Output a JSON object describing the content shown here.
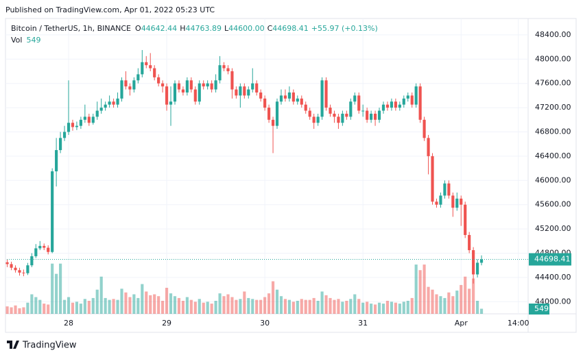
{
  "published": "Published on TradingView.com, Apr 01, 2022 05:23 UTC",
  "legend": {
    "symbol": "Bitcoin / TetherUS, 1h, BINANCE",
    "fields": [
      {
        "label": "O",
        "value": "44642.44"
      },
      {
        "label": "H",
        "value": "44763.89"
      },
      {
        "label": "L",
        "value": "44600.00"
      },
      {
        "label": "C",
        "value": "44698.41"
      }
    ],
    "change": "+55.97 (+0.13%)",
    "volume_label": "Vol"
  },
  "footer": "TradingView",
  "chart_data": {
    "type": "candlestick",
    "up_color": "#26a69a",
    "down_color": "#ef5350",
    "grid": true,
    "last_price": 44698.41,
    "ylim": [
      43800,
      48670
    ],
    "yticks": [
      {
        "value": 44000,
        "label": "44000.00"
      },
      {
        "value": 44400,
        "label": "44400.00"
      },
      {
        "value": 44800,
        "label": "44800.00"
      },
      {
        "value": 45200,
        "label": "45200.00"
      },
      {
        "value": 45600,
        "label": "45600.00"
      },
      {
        "value": 46000,
        "label": "46000.00"
      },
      {
        "value": 46400,
        "label": "46400.00"
      },
      {
        "value": 46800,
        "label": "46800.00"
      },
      {
        "value": 47200,
        "label": "47200.00"
      },
      {
        "value": 47600,
        "label": "47600.00"
      },
      {
        "value": 48000,
        "label": "48000.00"
      },
      {
        "value": 48400,
        "label": "48400.00"
      }
    ],
    "xlim": [
      -0.1,
      127.4
    ],
    "xticks": [
      {
        "value": 15,
        "label": "28"
      },
      {
        "value": 39,
        "label": "29"
      },
      {
        "value": 63,
        "label": "30"
      },
      {
        "value": 87,
        "label": "31"
      },
      {
        "value": 111,
        "label": "Apr"
      },
      {
        "value": 125,
        "label": "14:00"
      }
    ],
    "volume_lim": [
      0,
      7000
    ],
    "open": [
      44650,
      44620,
      44560,
      44520,
      44480,
      44470,
      44600,
      44750,
      44880,
      44920,
      44890,
      44820,
      46150,
      46500,
      46700,
      46800,
      46950,
      46880,
      46900,
      47000,
      47050,
      46950,
      47050,
      47150,
      47200,
      47250,
      47300,
      47250,
      47350,
      47650,
      47550,
      47500,
      47650,
      47750,
      47950,
      47900,
      47850,
      47700,
      47600,
      47550,
      47250,
      47300,
      47600,
      47500,
      47450,
      47650,
      47500,
      47300,
      47600,
      47550,
      47600,
      47500,
      47650,
      47900,
      47850,
      47800,
      47500,
      47400,
      47550,
      47400,
      47500,
      47600,
      47450,
      47350,
      47200,
      47000,
      46900,
      47300,
      47400,
      47350,
      47450,
      47300,
      47350,
      47250,
      47150,
      47050,
      46950,
      47050,
      47650,
      47200,
      47100,
      47050,
      46950,
      47100,
      47050,
      47300,
      47400,
      47150,
      47150,
      47000,
      47100,
      47000,
      47150,
      47250,
      47200,
      47300,
      47200,
      47250,
      47350,
      47400,
      47250,
      47550,
      47000,
      46700,
      46400,
      45650,
      45600,
      45750,
      45950,
      45750,
      45550,
      45700,
      45600,
      45100,
      44850,
      44450,
      44642.44
    ],
    "high": [
      44700,
      44660,
      44600,
      44560,
      44530,
      44640,
      44800,
      44950,
      45000,
      44960,
      44930,
      46200,
      46700,
      46800,
      46900,
      47650,
      47000,
      46970,
      47050,
      47250,
      47100,
      47100,
      47300,
      47350,
      47300,
      47400,
      47350,
      47450,
      47700,
      47800,
      47600,
      47700,
      47850,
      48150,
      48050,
      48100,
      47900,
      47750,
      47650,
      47600,
      47550,
      47650,
      47650,
      47550,
      47700,
      47700,
      47550,
      47650,
      47650,
      47650,
      47650,
      47750,
      48050,
      47950,
      47900,
      47850,
      47550,
      47600,
      47600,
      47550,
      47850,
      47650,
      47500,
      47400,
      47250,
      47050,
      47350,
      47500,
      47500,
      47550,
      47500,
      47400,
      47400,
      47300,
      47200,
      47100,
      47100,
      47700,
      47700,
      47250,
      47150,
      47100,
      47150,
      47150,
      47350,
      47450,
      47450,
      47250,
      47200,
      47150,
      47150,
      47200,
      47300,
      47300,
      47350,
      47350,
      47300,
      47400,
      47450,
      47450,
      47600,
      47600,
      47050,
      46750,
      46450,
      45700,
      45800,
      46000,
      46000,
      45800,
      45800,
      45750,
      45650,
      45150,
      44900,
      44700,
      44763.89
    ],
    "low": [
      44570,
      44520,
      44480,
      44430,
      44420,
      44440,
      44570,
      44720,
      44850,
      44850,
      44780,
      44800,
      45900,
      46450,
      46650,
      46750,
      46820,
      46830,
      46850,
      46950,
      46900,
      46920,
      47000,
      47100,
      47150,
      47200,
      47200,
      47200,
      47300,
      47500,
      47400,
      47450,
      47600,
      47700,
      47850,
      47800,
      47650,
      47550,
      47450,
      47150,
      46900,
      47250,
      47450,
      47400,
      47400,
      47450,
      47250,
      47250,
      47500,
      47500,
      47450,
      47450,
      47600,
      47800,
      47750,
      47350,
      47350,
      47200,
      47350,
      47350,
      47450,
      47400,
      47300,
      47150,
      46950,
      46450,
      46850,
      47250,
      47300,
      47300,
      47250,
      47250,
      47200,
      47100,
      47000,
      46850,
      46900,
      47000,
      47150,
      47050,
      46950,
      46850,
      46900,
      47000,
      47000,
      47250,
      47100,
      47050,
      46950,
      46950,
      46900,
      46950,
      47100,
      47150,
      47150,
      47150,
      47150,
      47200,
      47300,
      47200,
      47200,
      46950,
      46650,
      46100,
      45600,
      45550,
      45550,
      45700,
      45700,
      45400,
      45500,
      45250,
      45050,
      44800,
      44300,
      44400,
      44600
    ],
    "close": [
      44620,
      44560,
      44520,
      44480,
      44470,
      44600,
      44750,
      44880,
      44920,
      44890,
      44820,
      46150,
      46500,
      46700,
      46800,
      46950,
      46880,
      46900,
      47000,
      47050,
      46950,
      47050,
      47150,
      47200,
      47250,
      47300,
      47250,
      47350,
      47650,
      47550,
      47500,
      47650,
      47750,
      47950,
      47900,
      47850,
      47700,
      47600,
      47550,
      47250,
      47300,
      47600,
      47500,
      47450,
      47650,
      47500,
      47300,
      47600,
      47550,
      47600,
      47500,
      47650,
      47900,
      47850,
      47800,
      47500,
      47400,
      47550,
      47400,
      47500,
      47600,
      47450,
      47350,
      47200,
      47000,
      46900,
      47300,
      47400,
      47350,
      47450,
      47300,
      47350,
      47250,
      47150,
      47050,
      46950,
      47050,
      47650,
      47200,
      47100,
      47050,
      46950,
      47100,
      47050,
      47300,
      47400,
      47150,
      47150,
      47000,
      47100,
      47000,
      47150,
      47250,
      47200,
      47300,
      47200,
      47250,
      47350,
      47400,
      47250,
      47550,
      47000,
      46700,
      46400,
      45650,
      45600,
      45750,
      45950,
      45750,
      45550,
      45700,
      45600,
      45100,
      44850,
      44450,
      44642.44,
      44698.41
    ],
    "volume": [
      800,
      700,
      900,
      600,
      700,
      1200,
      2100,
      1800,
      1500,
      1100,
      1000,
      5400,
      4300,
      5400,
      1500,
      1800,
      1200,
      1300,
      1100,
      1600,
      1400,
      1700,
      2600,
      4000,
      1700,
      1500,
      1600,
      1500,
      2700,
      2300,
      1800,
      2100,
      1700,
      3200,
      2400,
      2000,
      2100,
      1900,
      1400,
      2800,
      2200,
      1900,
      1700,
      1400,
      1800,
      1500,
      1300,
      1600,
      1200,
      1300,
      1100,
      1400,
      2200,
      1900,
      2100,
      1800,
      1500,
      1600,
      2400,
      1700,
      1600,
      1500,
      1500,
      1800,
      2200,
      3500,
      2600,
      1900,
      1600,
      1500,
      1300,
      1400,
      1600,
      1500,
      1500,
      1700,
      1400,
      2400,
      2000,
      1700,
      1500,
      1600,
      1300,
      1400,
      1600,
      2100,
      1600,
      1200,
      1300,
      1100,
      1000,
      1200,
      1100,
      1400,
      1300,
      1200,
      1100,
      1300,
      1400,
      1700,
      5300,
      4700,
      5300,
      2900,
      2600,
      2100,
      1900,
      1700,
      2300,
      1900,
      2500,
      3100,
      4000,
      2700,
      3800,
      1400,
      549
    ]
  }
}
